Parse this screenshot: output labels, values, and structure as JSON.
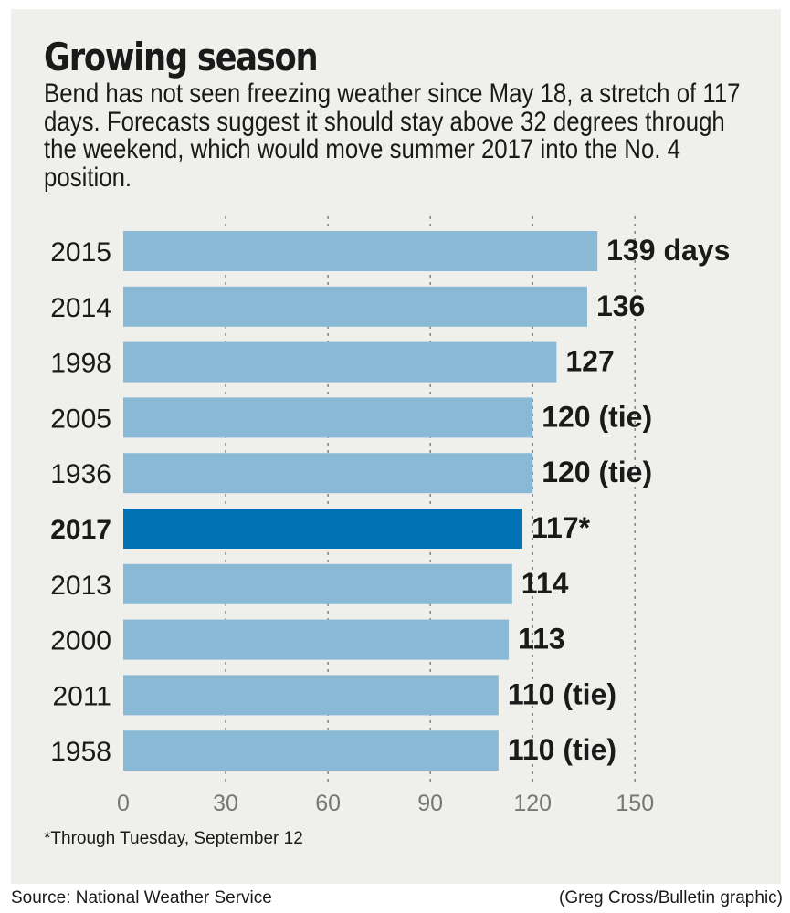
{
  "colors": {
    "bar": "#8ab9d6",
    "highlight_bar": "#0071b3",
    "gridline": "#8a8a8a",
    "panel_background": "#efefec"
  },
  "chart_data": {
    "type": "bar",
    "orientation": "horizontal",
    "title": "Growing season",
    "subtitle": "Bend has not seen freezing weather since May 18, a stretch of 117 days. Forecasts suggest it should stay above 32 degrees through the weekend, which would move summer 2017 into the No. 4 position.",
    "categories": [
      "2015",
      "2014",
      "1998",
      "2005",
      "1936",
      "2017",
      "2013",
      "2000",
      "2011",
      "1958"
    ],
    "values": [
      139,
      136,
      127,
      120,
      120,
      117,
      114,
      113,
      110,
      110
    ],
    "value_labels": [
      "139 days",
      "136",
      "127",
      "120 (tie)",
      "120 (tie)",
      "117*",
      "114",
      "113",
      "110 (tie)",
      "110 (tie)"
    ],
    "highlight_category": "2017",
    "xlim": [
      0,
      150
    ],
    "x_ticks": [
      "0",
      "30",
      "60",
      "90",
      "120",
      "150"
    ],
    "grid": "vertical dashed",
    "xlabel": "",
    "ylabel": "",
    "footnote": "*Through Tuesday, September 12",
    "source": "Source: National Weather Service",
    "credit": "(Greg Cross/Bulletin graphic)"
  }
}
